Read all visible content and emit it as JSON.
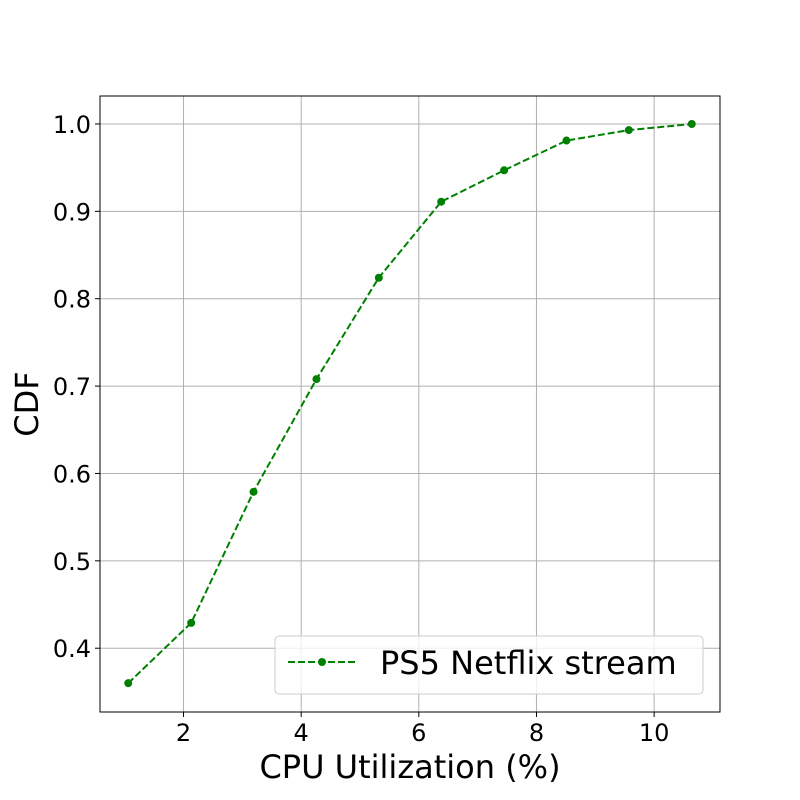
{
  "chart_data": {
    "type": "line",
    "title": "",
    "xlabel": "CPU Utilization (%)",
    "ylabel": "CDF",
    "xlim": [
      0.58,
      11.12
    ],
    "ylim": [
      0.327,
      1.032
    ],
    "xticks": [
      2,
      4,
      6,
      8,
      10
    ],
    "yticks": [
      0.4,
      0.5,
      0.6,
      0.7,
      0.8,
      0.9,
      1.0
    ],
    "xtick_labels": [
      "2",
      "4",
      "6",
      "8",
      "10"
    ],
    "ytick_labels": [
      "0.4",
      "0.5",
      "0.6",
      "0.7",
      "0.8",
      "0.9",
      "1.0"
    ],
    "grid": true,
    "legend_position": "lower-right",
    "series": [
      {
        "name": "PS5 Netflix stream",
        "color": "#008000",
        "line_style": "dashed",
        "marker": "circle",
        "x": [
          1.06,
          2.13,
          3.19,
          4.26,
          5.32,
          6.38,
          7.45,
          8.51,
          9.57,
          10.64
        ],
        "y": [
          0.36,
          0.429,
          0.579,
          0.708,
          0.824,
          0.911,
          0.947,
          0.981,
          0.993,
          1.0
        ]
      }
    ]
  }
}
